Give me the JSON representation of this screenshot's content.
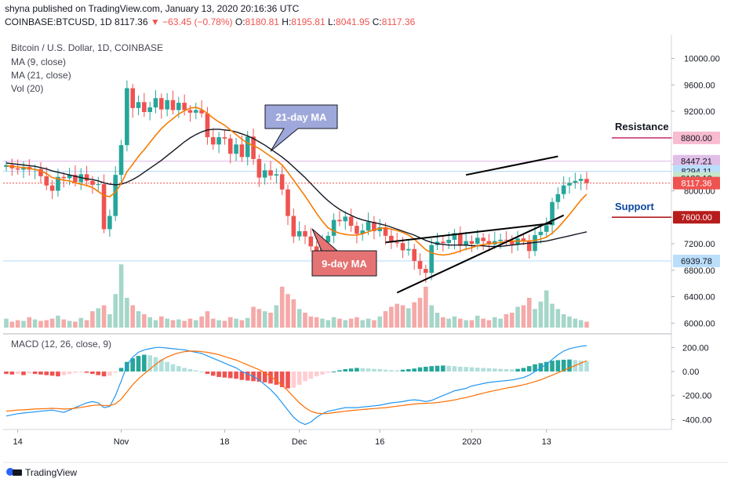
{
  "header": {
    "published_by": "shyna published on TradingView.com, January 13, 2020 20:16:36 UTC",
    "symbol": "COINBASE:BTCUSD, 1D",
    "last": "8117.36",
    "change": "−63.45 (−0.78%)",
    "open_label": "O:",
    "open": "8180.81",
    "high_label": "H:",
    "high": "8195.81",
    "low_label": "L:",
    "low": "8041.95",
    "close_label": "C:",
    "close": "8117.36"
  },
  "legend": {
    "title": "Bitcoin / U.S. Dollar, 1D, COINBASE",
    "ma9": "MA (9, close)",
    "ma21": "MA (21, close)",
    "vol": "Vol (20)"
  },
  "macd_legend": "MACD (12, 26, close, 9)",
  "footer": {
    "brand": "TradingView"
  },
  "colors": {
    "up": "#26a69a",
    "down": "#ef5350",
    "ma9": "#f57c00",
    "ma21": "#131722",
    "macd": "#2196f3",
    "signal": "#ff6d00",
    "support": "#b71c1c",
    "resistance": "#c2185b"
  },
  "chart_data": {
    "type": "candlestick",
    "x_axis_labels": [
      {
        "label": "14",
        "index": 2
      },
      {
        "label": "Nov",
        "index": 20
      },
      {
        "label": "18",
        "index": 38
      },
      {
        "label": "Dec",
        "index": 51
      },
      {
        "label": "16",
        "index": 65
      },
      {
        "label": "2020",
        "index": 81
      },
      {
        "label": "13",
        "index": 94
      }
    ],
    "price_axis": {
      "ticks": [
        "10000.00",
        "9600.00",
        "9200.00",
        "8800.00",
        "8400.00",
        "8000.00",
        "7600.00",
        "7200.00",
        "6800.00",
        "6400.00",
        "6000.00"
      ],
      "range": [
        5850,
        10350
      ],
      "badges": [
        {
          "label": "8800.00",
          "value": 8800,
          "color": "#f8bbd0",
          "text": "#131722"
        },
        {
          "label": "8447.21",
          "value": 8447,
          "color": "#e1bee7",
          "text": "#131722"
        },
        {
          "label": "8294.11",
          "value": 8294,
          "color": "#bbdefb",
          "text": "#131722"
        },
        {
          "label": "8188.12",
          "value": 8188,
          "color": "#c8e6c9",
          "text": "#131722"
        },
        {
          "label": "8117.36",
          "value": 8117,
          "color": "#ef5350",
          "text": "#ffffff"
        },
        {
          "label": "7600.00",
          "value": 7600,
          "color": "#b71c1c",
          "text": "#ffffff"
        },
        {
          "label": "6939.78",
          "value": 6940,
          "color": "#bbdefb",
          "text": "#131722"
        }
      ]
    },
    "macd_axis": {
      "ticks": [
        "200.00",
        "0.00",
        "-200.00",
        "-400.00"
      ],
      "range": [
        -560,
        300
      ]
    },
    "annotations": {
      "ma21_callout": "21-day MA",
      "ma9_callout": "9-day MA",
      "resistance_label": "Resistance",
      "resistance_level": 8800,
      "support_label": "Support",
      "support_level": 7600,
      "channel_upper": [
        [
          80,
          8240
        ],
        [
          96,
          8520
        ]
      ],
      "channel_lower": [
        [
          68,
          6460
        ],
        [
          97,
          7630
        ]
      ],
      "channel_mid": [
        [
          66,
          7220
        ],
        [
          95,
          7510
        ]
      ]
    },
    "closes": [
      8390,
      8340,
      8320,
      8360,
      8320,
      8330,
      8220,
      8080,
      8000,
      8210,
      8190,
      8240,
      8130,
      8250,
      8150,
      8090,
      8100,
      7420,
      7620,
      8240,
      8690,
      9550,
      9250,
      9340,
      9190,
      9260,
      9400,
      9230,
      9370,
      9220,
      9330,
      9220,
      9180,
      9220,
      9170,
      8810,
      8700,
      8810,
      8790,
      8560,
      8700,
      8510,
      8820,
      8480,
      8200,
      8310,
      8230,
      8250,
      8020,
      7620,
      7310,
      7390,
      7310,
      7160,
      7060,
      7220,
      7320,
      7560,
      7540,
      7610,
      7470,
      7350,
      7400,
      7530,
      7390,
      7450,
      7320,
      7220,
      7210,
      7100,
      7120,
      6940,
      6820,
      6760,
      7180,
      7230,
      7210,
      7260,
      7360,
      7170,
      7240,
      7200,
      7290,
      7240,
      7190,
      7240,
      7260,
      7250,
      7190,
      7280,
      7240,
      7090,
      7330,
      7380,
      7480,
      7830,
      7950,
      8080,
      8120,
      8150,
      8180,
      8117
    ],
    "ma9": [
      8380,
      8370,
      8360,
      8350,
      8340,
      8320,
      8300,
      8260,
      8200,
      8180,
      8160,
      8150,
      8120,
      8100,
      8080,
      8050,
      7990,
      7930,
      7910,
      7980,
      8110,
      8290,
      8400,
      8520,
      8620,
      8730,
      8840,
      8940,
      9020,
      9090,
      9160,
      9210,
      9250,
      9260,
      9230,
      9170,
      9100,
      9040,
      8990,
      8920,
      8850,
      8780,
      8720,
      8680,
      8640,
      8580,
      8520,
      8460,
      8390,
      8280,
      8160,
      8040,
      7920,
      7790,
      7660,
      7540,
      7440,
      7390,
      7360,
      7340,
      7330,
      7330,
      7350,
      7380,
      7410,
      7430,
      7440,
      7420,
      7400,
      7370,
      7330,
      7270,
      7190,
      7110,
      7060,
      7040,
      7030,
      7040,
      7060,
      7090,
      7120,
      7140,
      7170,
      7190,
      7200,
      7210,
      7220,
      7230,
      7240,
      7240,
      7240,
      7240,
      7250,
      7270,
      7300,
      7360,
      7440,
      7540,
      7640,
      7750,
      7860,
      7950
    ],
    "ma21": [
      8420,
      8410,
      8400,
      8390,
      8380,
      8370,
      8350,
      8330,
      8300,
      8280,
      8260,
      8240,
      8220,
      8200,
      8180,
      8170,
      8150,
      8120,
      8100,
      8090,
      8100,
      8130,
      8170,
      8220,
      8280,
      8340,
      8400,
      8460,
      8530,
      8600,
      8670,
      8740,
      8800,
      8850,
      8890,
      8920,
      8930,
      8930,
      8920,
      8910,
      8890,
      8860,
      8830,
      8790,
      8740,
      8690,
      8630,
      8570,
      8510,
      8440,
      8360,
      8280,
      8200,
      8110,
      8020,
      7930,
      7850,
      7780,
      7720,
      7670,
      7630,
      7590,
      7560,
      7540,
      7520,
      7500,
      7480,
      7450,
      7420,
      7390,
      7360,
      7330,
      7290,
      7250,
      7220,
      7200,
      7190,
      7180,
      7180,
      7180,
      7180,
      7170,
      7170,
      7170,
      7160,
      7160,
      7160,
      7170,
      7180,
      7190,
      7200,
      7210,
      7220,
      7230,
      7240,
      7260,
      7280,
      7300,
      7320,
      7340,
      7360,
      7380
    ],
    "volume": [
      0.12,
      0.08,
      0.1,
      0.09,
      0.14,
      0.11,
      0.09,
      0.1,
      0.12,
      0.16,
      0.11,
      0.09,
      0.08,
      0.13,
      0.1,
      0.22,
      0.26,
      0.3,
      0.18,
      0.45,
      0.85,
      0.4,
      0.3,
      0.22,
      0.18,
      0.14,
      0.1,
      0.15,
      0.12,
      0.1,
      0.11,
      0.09,
      0.12,
      0.1,
      0.15,
      0.22,
      0.12,
      0.1,
      0.09,
      0.14,
      0.12,
      0.1,
      0.13,
      0.28,
      0.25,
      0.22,
      0.2,
      0.3,
      0.55,
      0.45,
      0.38,
      0.25,
      0.2,
      0.15,
      0.14,
      0.12,
      0.1,
      0.14,
      0.12,
      0.1,
      0.12,
      0.14,
      0.1,
      0.12,
      0.1,
      0.15,
      0.22,
      0.28,
      0.32,
      0.3,
      0.26,
      0.34,
      0.4,
      0.55,
      0.3,
      0.2,
      0.14,
      0.12,
      0.15,
      0.12,
      0.1,
      0.1,
      0.16,
      0.12,
      0.1,
      0.14,
      0.12,
      0.18,
      0.2,
      0.28,
      0.3,
      0.4,
      0.25,
      0.35,
      0.5,
      0.32,
      0.25,
      0.18,
      0.15,
      0.12,
      0.1,
      0.08
    ],
    "macd_hist": [
      -20,
      -25,
      -20,
      -30,
      -15,
      -20,
      -25,
      -30,
      -35,
      -40,
      -30,
      -20,
      -10,
      -5,
      -10,
      -20,
      -30,
      -40,
      -35,
      -10,
      30,
      80,
      110,
      130,
      140,
      135,
      120,
      100,
      80,
      60,
      45,
      30,
      20,
      10,
      0,
      -20,
      -35,
      -45,
      -50,
      -55,
      -60,
      -70,
      -75,
      -80,
      -85,
      -90,
      -100,
      -110,
      -130,
      -140,
      -135,
      -110,
      -80,
      -60,
      -40,
      -25,
      -10,
      0,
      10,
      20,
      25,
      30,
      28,
      25,
      22,
      20,
      15,
      12,
      10,
      15,
      20,
      25,
      35,
      40,
      45,
      48,
      50,
      48,
      45,
      40,
      38,
      35,
      32,
      30,
      28,
      25,
      22,
      20,
      18,
      22,
      30,
      45,
      60,
      70,
      80,
      90,
      95,
      98,
      100,
      95,
      90,
      85
    ],
    "macd": [
      -370,
      -360,
      -350,
      -345,
      -340,
      -335,
      -330,
      -325,
      -320,
      -330,
      -340,
      -320,
      -300,
      -280,
      -260,
      -250,
      -260,
      -300,
      -290,
      -200,
      -80,
      50,
      120,
      160,
      180,
      190,
      200,
      200,
      195,
      190,
      185,
      180,
      170,
      160,
      150,
      130,
      110,
      90,
      70,
      50,
      30,
      0,
      -20,
      -40,
      -70,
      -110,
      -150,
      -200,
      -260,
      -320,
      -380,
      -420,
      -440,
      -420,
      -380,
      -350,
      -330,
      -320,
      -310,
      -300,
      -300,
      -300,
      -295,
      -290,
      -285,
      -280,
      -270,
      -260,
      -255,
      -250,
      -240,
      -235,
      -240,
      -250,
      -240,
      -220,
      -200,
      -180,
      -160,
      -150,
      -140,
      -120,
      -110,
      -100,
      -90,
      -85,
      -80,
      -75,
      -70,
      -60,
      -50,
      -30,
      0,
      30,
      60,
      100,
      140,
      170,
      190,
      200,
      210,
      215
    ],
    "signal": [
      -330,
      -325,
      -320,
      -318,
      -315,
      -312,
      -310,
      -308,
      -306,
      -308,
      -312,
      -310,
      -305,
      -298,
      -290,
      -282,
      -278,
      -282,
      -283,
      -268,
      -230,
      -170,
      -110,
      -60,
      -20,
      20,
      60,
      95,
      120,
      140,
      155,
      165,
      170,
      170,
      165,
      160,
      150,
      140,
      125,
      110,
      95,
      75,
      55,
      35,
      15,
      -10,
      -40,
      -75,
      -115,
      -160,
      -210,
      -260,
      -300,
      -330,
      -345,
      -350,
      -348,
      -342,
      -336,
      -330,
      -325,
      -320,
      -316,
      -312,
      -308,
      -304,
      -300,
      -294,
      -288,
      -282,
      -276,
      -270,
      -266,
      -264,
      -262,
      -258,
      -252,
      -244,
      -236,
      -226,
      -216,
      -204,
      -192,
      -180,
      -168,
      -158,
      -148,
      -138,
      -130,
      -120,
      -110,
      -98,
      -84,
      -68,
      -50,
      -30,
      -10,
      10,
      30,
      50,
      70,
      90
    ]
  }
}
